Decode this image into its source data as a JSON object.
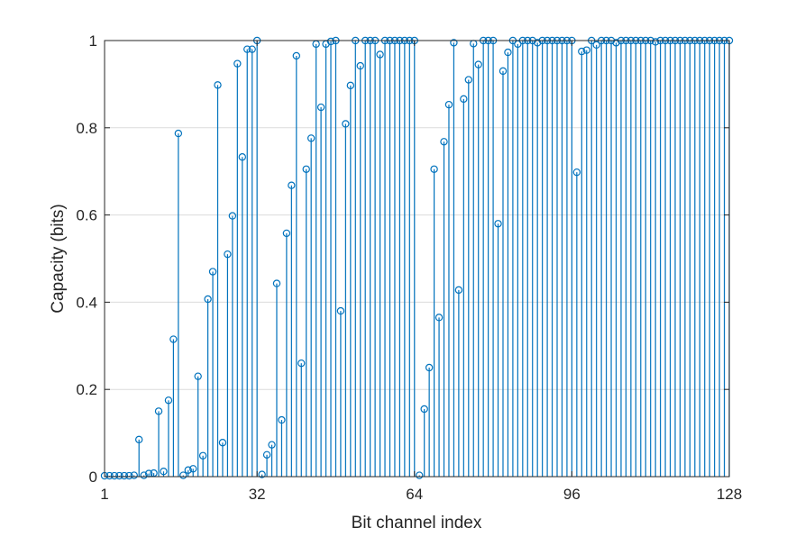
{
  "chart_data": {
    "type": "stem",
    "title": "",
    "xlabel": "Bit channel index",
    "ylabel": "Capacity (bits)",
    "xlim": [
      1,
      128
    ],
    "ylim": [
      0,
      1
    ],
    "xticks": [
      1,
      32,
      64,
      96,
      128
    ],
    "yticks": [
      0,
      0.2,
      0.4,
      0.6,
      0.8,
      1
    ],
    "grid": true,
    "series_color": "#0072BD",
    "x": [
      1,
      2,
      3,
      4,
      5,
      6,
      7,
      8,
      9,
      10,
      11,
      12,
      13,
      14,
      15,
      16,
      17,
      18,
      19,
      20,
      21,
      22,
      23,
      24,
      25,
      26,
      27,
      28,
      29,
      30,
      31,
      32,
      33,
      34,
      35,
      36,
      37,
      38,
      39,
      40,
      41,
      42,
      43,
      44,
      45,
      46,
      47,
      48,
      49,
      50,
      51,
      52,
      53,
      54,
      55,
      56,
      57,
      58,
      59,
      60,
      61,
      62,
      63,
      64,
      65,
      66,
      67,
      68,
      69,
      70,
      71,
      72,
      73,
      74,
      75,
      76,
      77,
      78,
      79,
      80,
      81,
      82,
      83,
      84,
      85,
      86,
      87,
      88,
      89,
      90,
      91,
      92,
      93,
      94,
      95,
      96,
      97,
      98,
      99,
      100,
      101,
      102,
      103,
      104,
      105,
      106,
      107,
      108,
      109,
      110,
      111,
      112,
      113,
      114,
      115,
      116,
      117,
      118,
      119,
      120,
      121,
      122,
      123,
      124,
      125,
      126,
      127,
      128
    ],
    "values": [
      0.002,
      0.002,
      0.002,
      0.002,
      0.002,
      0.002,
      0.003,
      0.085,
      0.003,
      0.007,
      0.008,
      0.15,
      0.012,
      0.175,
      0.315,
      0.787,
      0.003,
      0.015,
      0.018,
      0.23,
      0.048,
      0.407,
      0.47,
      0.898,
      0.078,
      0.51,
      0.598,
      0.947,
      0.733,
      0.98,
      0.98,
      1.0,
      0.005,
      0.05,
      0.073,
      0.443,
      0.13,
      0.558,
      0.668,
      0.965,
      0.26,
      0.705,
      0.776,
      0.992,
      0.847,
      0.992,
      0.998,
      1.0,
      0.38,
      0.809,
      0.897,
      1.0,
      0.942,
      1.0,
      1.0,
      1.0,
      0.968,
      1.0,
      1.0,
      1.0,
      1.0,
      1.0,
      1.0,
      1.0,
      0.003,
      0.155,
      0.25,
      0.705,
      0.365,
      0.768,
      0.853,
      0.995,
      0.428,
      0.866,
      0.91,
      0.993,
      0.945,
      1.0,
      1.0,
      1.0,
      0.58,
      0.93,
      0.973,
      1.0,
      0.992,
      1.0,
      1.0,
      1.0,
      0.995,
      1.0,
      1.0,
      1.0,
      1.0,
      1.0,
      1.0,
      1.0,
      0.698,
      0.975,
      0.978,
      1.0,
      0.99,
      1.0,
      1.0,
      1.0,
      0.995,
      1.0,
      1.0,
      1.0,
      1.0,
      1.0,
      1.0,
      1.0,
      0.997,
      1.0,
      1.0,
      1.0,
      1.0,
      1.0,
      1.0,
      1.0,
      1.0,
      1.0,
      1.0,
      1.0,
      1.0,
      1.0,
      1.0,
      1.0
    ]
  }
}
